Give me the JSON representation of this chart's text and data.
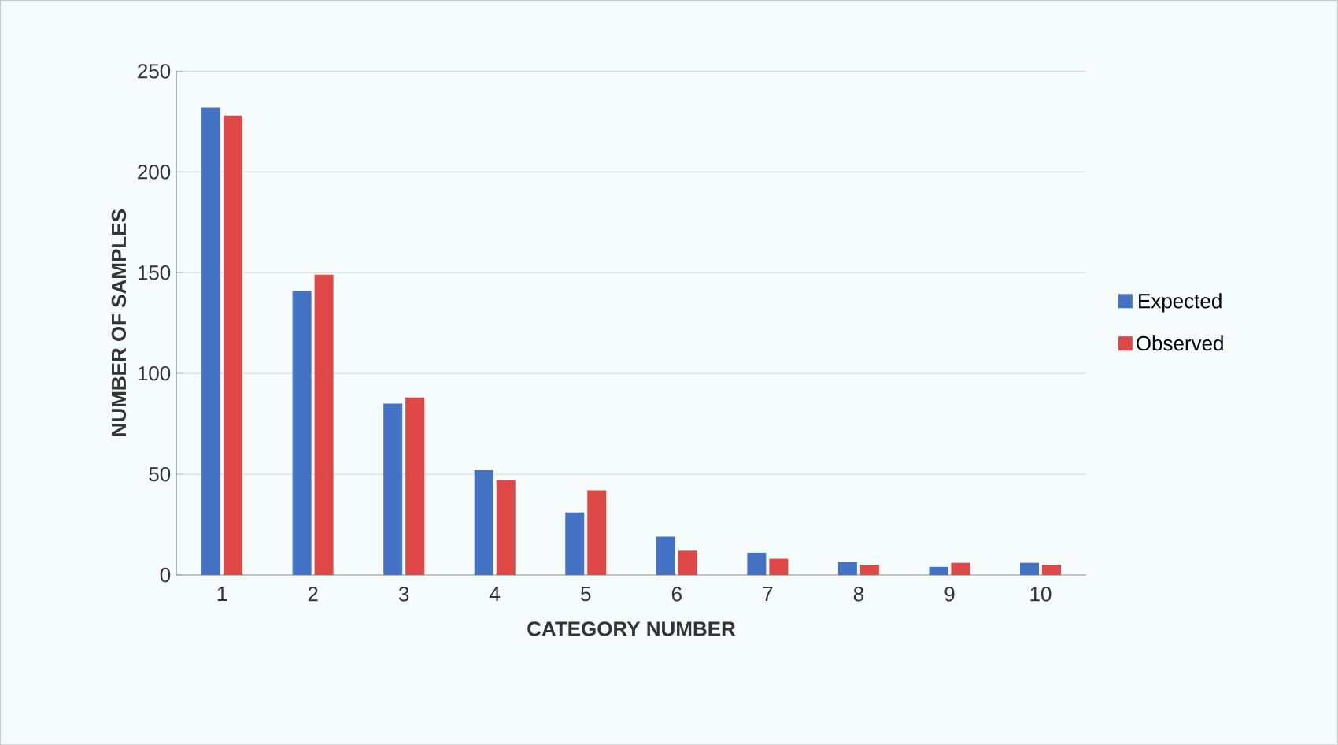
{
  "chart_data": {
    "type": "bar",
    "xlabel": "CATEGORY NUMBER",
    "ylabel": "NUMBER OF SAMPLES",
    "categories": [
      "1",
      "2",
      "3",
      "4",
      "5",
      "6",
      "7",
      "8",
      "9",
      "10"
    ],
    "series": [
      {
        "name": "Expected",
        "color": "#4472c4",
        "values": [
          232,
          141,
          85,
          52,
          31,
          19,
          11,
          6.5,
          4,
          6
        ]
      },
      {
        "name": "Observed",
        "color": "#e04848",
        "values": [
          228,
          149,
          88,
          47,
          42,
          12,
          8,
          5,
          6,
          5
        ]
      }
    ],
    "ylim": [
      0,
      250
    ],
    "yticks": [
      0,
      50,
      100,
      150,
      200,
      250
    ],
    "grid": "y",
    "legend": "right"
  }
}
